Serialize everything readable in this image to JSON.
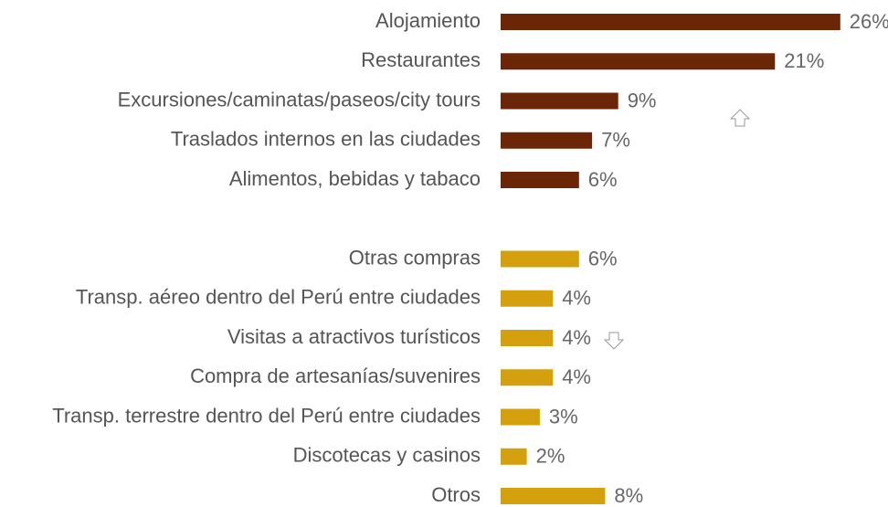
{
  "chart_data": {
    "type": "bar",
    "orientation": "horizontal",
    "categories": [
      "Alojamiento",
      "Restaurantes",
      "Excursiones/caminatas/paseos/city tours",
      "Traslados internos en las ciudades",
      "Alimentos, bebidas y tabaco",
      "Otras compras",
      "Transp. aéreo dentro del Perú entre ciudades",
      "Visitas a atractivos turísticos",
      "Compra de artesanías/suvenires",
      "Transp. terrestre dentro del Perú entre ciudades",
      "Discotecas y casinos",
      "Otros"
    ],
    "values": [
      26,
      21,
      9,
      7,
      6,
      6,
      4,
      4,
      4,
      3,
      2,
      8
    ],
    "value_labels": [
      "26%",
      "21%",
      "9%",
      "7%",
      "6%",
      "6%",
      "4%",
      "4%",
      "4%",
      "3%",
      "2%",
      "8%"
    ],
    "colors": [
      "#6b2608",
      "#6b2608",
      "#6b2608",
      "#6b2608",
      "#6b2608",
      "#d4a00e",
      "#d4a00e",
      "#d4a00e",
      "#d4a00e",
      "#d4a00e",
      "#d4a00e",
      "#d4a00e"
    ]
  }
}
